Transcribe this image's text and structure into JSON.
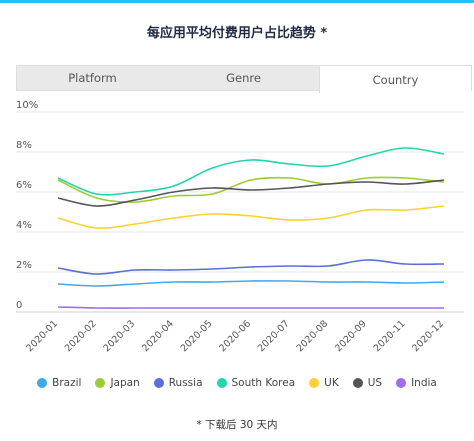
{
  "title": "每应用平均付费用户占比趋势 *",
  "tabs": [
    {
      "label": "Platform",
      "active": false
    },
    {
      "label": "Genre",
      "active": false
    },
    {
      "label": "Country",
      "active": true
    }
  ],
  "footnote": "* 下载后 30 天内",
  "chart_data": {
    "type": "line",
    "categories": [
      "2020-01",
      "2020-02",
      "2020-03",
      "2020-04",
      "2020-05",
      "2020-06",
      "2020-07",
      "2020-08",
      "2020-09",
      "2020-11",
      "2020-12"
    ],
    "y_ticks": [
      "10%",
      "8%",
      "6%",
      "4%",
      "2%",
      "0"
    ],
    "ylim": [
      0,
      10
    ],
    "grid": true,
    "legend_position": "bottom",
    "series": [
      {
        "name": "Brazil",
        "color": "#3fa9f0",
        "values": [
          1.4,
          1.3,
          1.4,
          1.5,
          1.5,
          1.55,
          1.55,
          1.5,
          1.5,
          1.45,
          1.5
        ]
      },
      {
        "name": "Japan",
        "color": "#9ccd2f",
        "values": [
          6.6,
          5.7,
          5.5,
          5.8,
          5.9,
          6.6,
          6.7,
          6.4,
          6.7,
          6.7,
          6.5
        ]
      },
      {
        "name": "Russia",
        "color": "#5b6fd6",
        "values": [
          2.2,
          1.9,
          2.1,
          2.1,
          2.15,
          2.25,
          2.3,
          2.3,
          2.6,
          2.4,
          2.4
        ]
      },
      {
        "name": "South Korea",
        "color": "#1fd6ad",
        "values": [
          6.7,
          5.9,
          6.0,
          6.3,
          7.2,
          7.6,
          7.4,
          7.3,
          7.8,
          8.2,
          7.9
        ]
      },
      {
        "name": "UK",
        "color": "#ffd12f",
        "values": [
          4.7,
          4.2,
          4.4,
          4.7,
          4.9,
          4.8,
          4.6,
          4.7,
          5.1,
          5.1,
          5.3
        ]
      },
      {
        "name": "US",
        "color": "#555555",
        "values": [
          5.7,
          5.3,
          5.6,
          6.0,
          6.2,
          6.1,
          6.2,
          6.4,
          6.5,
          6.4,
          6.6
        ]
      },
      {
        "name": "India",
        "color": "#a06bf0",
        "values": [
          0.25,
          0.2,
          0.2,
          0.2,
          0.2,
          0.2,
          0.2,
          0.2,
          0.2,
          0.2,
          0.2
        ]
      }
    ]
  }
}
